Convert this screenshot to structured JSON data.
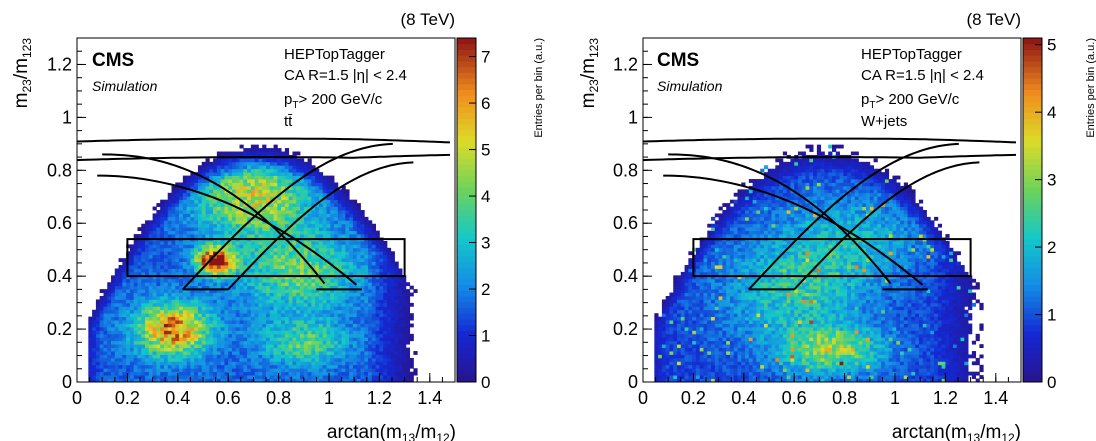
{
  "chart_data": [
    {
      "type": "heatmap",
      "energy_label": "(8 TeV)",
      "experiment": "CMS",
      "subtitle": "Simulation",
      "algorithm": "HEPTopTagger",
      "jet_def": "CA R=1.5 |η| < 2.4",
      "pt_text": "> 200 GeV/c",
      "sample": "tt̄",
      "xlabel": "arctan(m13/m12)",
      "ylabel": "m23/m123",
      "zlabel": "Entries per bin (a.u.)",
      "xlim": [
        0,
        1.5
      ],
      "ylim": [
        0,
        1.3
      ],
      "zlim": [
        0,
        7.4
      ],
      "xticks": [
        "0",
        "0.2",
        "0.4",
        "0.6",
        "0.8",
        "1",
        "1.2",
        "1.4"
      ],
      "yticks": [
        "0",
        "0.2",
        "0.4",
        "0.6",
        "0.8",
        "1",
        "1.2"
      ],
      "zticks": [
        "0",
        "1",
        "2",
        "3",
        "4",
        "5",
        "6",
        "7"
      ],
      "peak_max": 7.0,
      "hotspots": [
        {
          "x": 0.55,
          "y": 0.46,
          "amp": 7.0,
          "sx": 0.05,
          "sy": 0.035
        },
        {
          "x": 0.38,
          "y": 0.2,
          "amp": 4.8,
          "sx": 0.1,
          "sy": 0.07
        },
        {
          "x": 0.7,
          "y": 0.7,
          "amp": 3.3,
          "sx": 0.16,
          "sy": 0.1
        },
        {
          "x": 0.88,
          "y": 0.42,
          "amp": 2.5,
          "sx": 0.16,
          "sy": 0.1
        },
        {
          "x": 0.9,
          "y": 0.15,
          "amp": 2.2,
          "sx": 0.12,
          "sy": 0.06
        }
      ]
    },
    {
      "type": "heatmap",
      "energy_label": "(8 TeV)",
      "experiment": "CMS",
      "subtitle": "Simulation",
      "algorithm": "HEPTopTagger",
      "jet_def": "CA R=1.5 |η| < 2.4",
      "pt_text": "> 200 GeV/c",
      "sample": "W+jets",
      "xlabel": "arctan(m13/m12)",
      "ylabel": "m23/m123",
      "zlabel": "Entries per bin (a.u.)",
      "xlim": [
        0,
        1.5
      ],
      "ylim": [
        0,
        1.3
      ],
      "zlim": [
        0,
        5.1
      ],
      "xticks": [
        "0",
        "0.2",
        "0.4",
        "0.6",
        "0.8",
        "1",
        "1.2",
        "1.4"
      ],
      "yticks": [
        "0",
        "0.2",
        "0.4",
        "0.6",
        "0.8",
        "1",
        "1.2"
      ],
      "zticks": [
        "0",
        "1",
        "2",
        "3",
        "4",
        "5"
      ],
      "peak_max": 5.0,
      "hotspots": [
        {
          "x": 0.75,
          "y": 0.12,
          "amp": 2.0,
          "sx": 0.14,
          "sy": 0.06
        },
        {
          "x": 0.6,
          "y": 0.35,
          "amp": 1.3,
          "sx": 0.2,
          "sy": 0.15
        },
        {
          "x": 0.85,
          "y": 0.55,
          "amp": 0.9,
          "sx": 0.18,
          "sy": 0.12
        }
      ]
    }
  ],
  "pt_subscript": "T",
  "axis_sub": {
    "x_num": "13",
    "x_den": "12",
    "y_num": "23",
    "y_den": "123"
  }
}
